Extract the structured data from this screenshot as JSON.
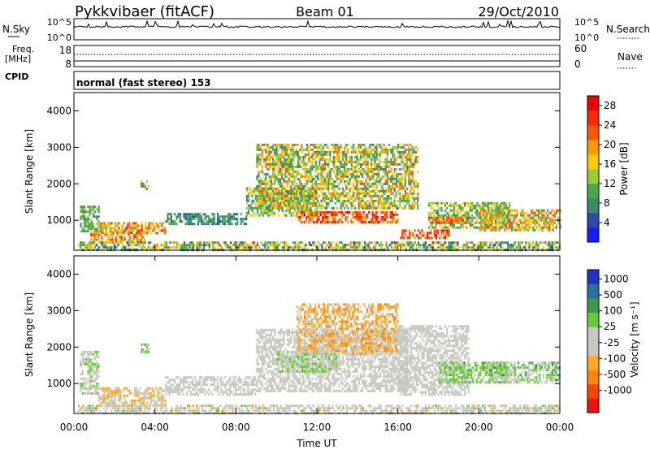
{
  "header": {
    "station": "Pykkvibaer (fitACF)",
    "beam": "Beam 01",
    "date": "29/Oct/2010"
  },
  "panels": {
    "nsky": {
      "left_label": "N.Sky",
      "right_label": "N.Search",
      "left_ticks": [
        "10^5",
        "10^0"
      ],
      "right_ticks": [
        "10^5",
        "10^0"
      ]
    },
    "freq": {
      "left_label_1": "Freq.",
      "left_label_2": "[MHz]",
      "right_label": "Nave",
      "left_ticks": [
        "18",
        "8"
      ],
      "right_ticks": [
        "60",
        "0"
      ]
    },
    "cpid": {
      "label": "CPID",
      "mode_text": "normal (fast stereo) 153"
    }
  },
  "colors": {
    "power": [
      "#1a1aff",
      "#2a4ea8",
      "#3c8a6a",
      "#4aa84a",
      "#9acd32",
      "#ffcc00",
      "#ff9900",
      "#ff5500",
      "#ff2a00",
      "#ee0000"
    ],
    "velocity": [
      "#ee1111",
      "#ff4400",
      "#ff8800",
      "#ffaa22",
      "#c8c8c0",
      "#c8c8c0",
      "#66cc33",
      "#3c9a4a",
      "#2f6ea5",
      "#2233cc"
    ]
  },
  "chart_data": [
    {
      "type": "heatmap",
      "name": "power",
      "ylabel": "Slant Range [km]",
      "ylim": [
        180,
        4500
      ],
      "yticks": [
        1000,
        2000,
        3000,
        4000
      ],
      "xlim": [
        0,
        24
      ],
      "colorbar": {
        "label": "Power [dB]",
        "range": [
          0,
          30
        ],
        "ticks": [
          4,
          8,
          12,
          16,
          20,
          24,
          28
        ]
      },
      "regions": [
        {
          "t": [
            0.3,
            1.2
          ],
          "r": [
            700,
            1400
          ],
          "level": [
            6,
            14
          ]
        },
        {
          "t": [
            0.8,
            3.5
          ],
          "r": [
            400,
            700
          ],
          "level": [
            10,
            26
          ]
        },
        {
          "t": [
            1.2,
            4.5
          ],
          "r": [
            650,
            950
          ],
          "level": [
            12,
            26
          ]
        },
        {
          "t": [
            3.3,
            3.7
          ],
          "r": [
            1850,
            2100
          ],
          "level": [
            6,
            18
          ]
        },
        {
          "t": [
            4.5,
            8.5
          ],
          "r": [
            900,
            1200
          ],
          "level": [
            4,
            12
          ]
        },
        {
          "t": [
            8.5,
            12.0
          ],
          "r": [
            1100,
            1900
          ],
          "level": [
            6,
            18
          ]
        },
        {
          "t": [
            9.0,
            17.0
          ],
          "r": [
            1300,
            3100
          ],
          "level": [
            6,
            22
          ]
        },
        {
          "t": [
            11.0,
            16.0
          ],
          "r": [
            950,
            1250
          ],
          "level": [
            18,
            29
          ]
        },
        {
          "t": [
            16.0,
            18.5
          ],
          "r": [
            500,
            750
          ],
          "level": [
            20,
            29
          ]
        },
        {
          "t": [
            17.5,
            21.5
          ],
          "r": [
            800,
            1500
          ],
          "level": [
            6,
            18
          ]
        },
        {
          "t": [
            17.5,
            19.5
          ],
          "r": [
            950,
            1100
          ],
          "level": [
            18,
            27
          ]
        },
        {
          "t": [
            20.0,
            24.0
          ],
          "r": [
            700,
            1300
          ],
          "level": [
            8,
            24
          ]
        },
        {
          "t": [
            0.2,
            24.0
          ],
          "r": [
            200,
            420
          ],
          "level": [
            4,
            20
          ]
        }
      ]
    },
    {
      "type": "heatmap",
      "name": "velocity",
      "ylabel": "Slant Range [km]",
      "xlabel": "Time UT",
      "ylim": [
        180,
        4500
      ],
      "yticks": [
        1000,
        2000,
        3000,
        4000
      ],
      "xlim": [
        0,
        24
      ],
      "xticks": [
        "00:00",
        "04:00",
        "08:00",
        "12:00",
        "16:00",
        "20:00",
        "00:00"
      ],
      "colorbar": {
        "label": "Velocity [m s⁻¹]",
        "range": [
          -1200,
          1200
        ],
        "ticks": [
          "1000",
          "500",
          "100",
          "25",
          "-25",
          "-100",
          "-500",
          "-1000"
        ]
      },
      "regions": [
        {
          "t": [
            0.3,
            1.2
          ],
          "r": [
            700,
            1900
          ],
          "level": [
            -150,
            400
          ]
        },
        {
          "t": [
            1.2,
            4.5
          ],
          "r": [
            400,
            900
          ],
          "level": [
            -400,
            50
          ]
        },
        {
          "t": [
            3.3,
            3.7
          ],
          "r": [
            1850,
            2100
          ],
          "level": [
            100,
            500
          ]
        },
        {
          "t": [
            4.5,
            9.0
          ],
          "r": [
            700,
            1200
          ],
          "level": [
            -50,
            30
          ]
        },
        {
          "t": [
            9.0,
            16.5
          ],
          "r": [
            800,
            2500
          ],
          "level": [
            -40,
            30
          ]
        },
        {
          "t": [
            11.0,
            16.0
          ],
          "r": [
            1800,
            3200
          ],
          "level": [
            -600,
            -50
          ]
        },
        {
          "t": [
            10.0,
            13.0
          ],
          "r": [
            1300,
            1900
          ],
          "level": [
            80,
            400
          ]
        },
        {
          "t": [
            16.0,
            19.5
          ],
          "r": [
            700,
            2600
          ],
          "level": [
            -40,
            30
          ]
        },
        {
          "t": [
            18.0,
            21.5
          ],
          "r": [
            1000,
            1600
          ],
          "level": [
            100,
            500
          ]
        },
        {
          "t": [
            20.5,
            24.0
          ],
          "r": [
            1000,
            1600
          ],
          "level": [
            -100,
            600
          ]
        },
        {
          "t": [
            0.2,
            24.0
          ],
          "r": [
            200,
            420
          ],
          "level": [
            -300,
            300
          ]
        }
      ]
    }
  ]
}
